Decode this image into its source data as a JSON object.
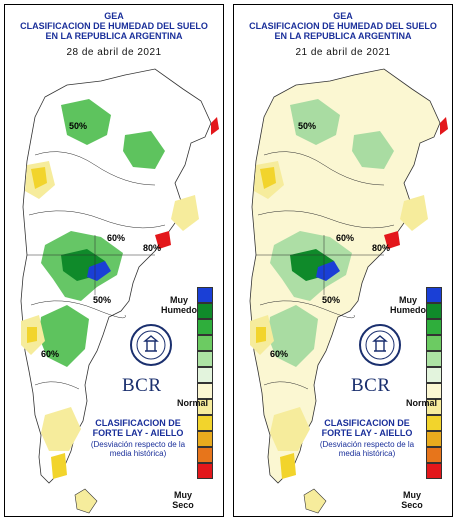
{
  "panels": [
    {
      "org": "GEA",
      "title1": "CLASIFICACION DE HUMEDAD DEL SUELO",
      "title2": "EN LA REPUBLICA ARGENTINA",
      "date": "28 de abril de 2021",
      "wet_tone": "#5ec35e"
    },
    {
      "org": "GEA",
      "title1": "CLASIFICACION DE HUMEDAD DEL SUELO",
      "title2": "EN LA REPUBLICA ARGENTINA",
      "date": "21 de abril de 2021",
      "wet_tone": "#a9dca2"
    }
  ],
  "legend": {
    "top_label": "Muy Humedo",
    "mid_label": "Normal",
    "bottom_label": "Muy Seco",
    "colors": [
      "#1a3fd6",
      "#0f8a2a",
      "#2fae3c",
      "#6ccb62",
      "#ade3a4",
      "#e3f4dd",
      "#fbf7d2",
      "#f6ec9c",
      "#f2d42c",
      "#e9ab1e",
      "#e7751b",
      "#e3171b"
    ]
  },
  "brand": {
    "name": "BCR",
    "class_title": "CLASIFICACION DE FORTE LAY - AIELLO",
    "class_note": "(Desviación respecto de la media histórica)"
  },
  "contour_labels": [
    "50%",
    "60%",
    "80%",
    "50%",
    "60%"
  ]
}
